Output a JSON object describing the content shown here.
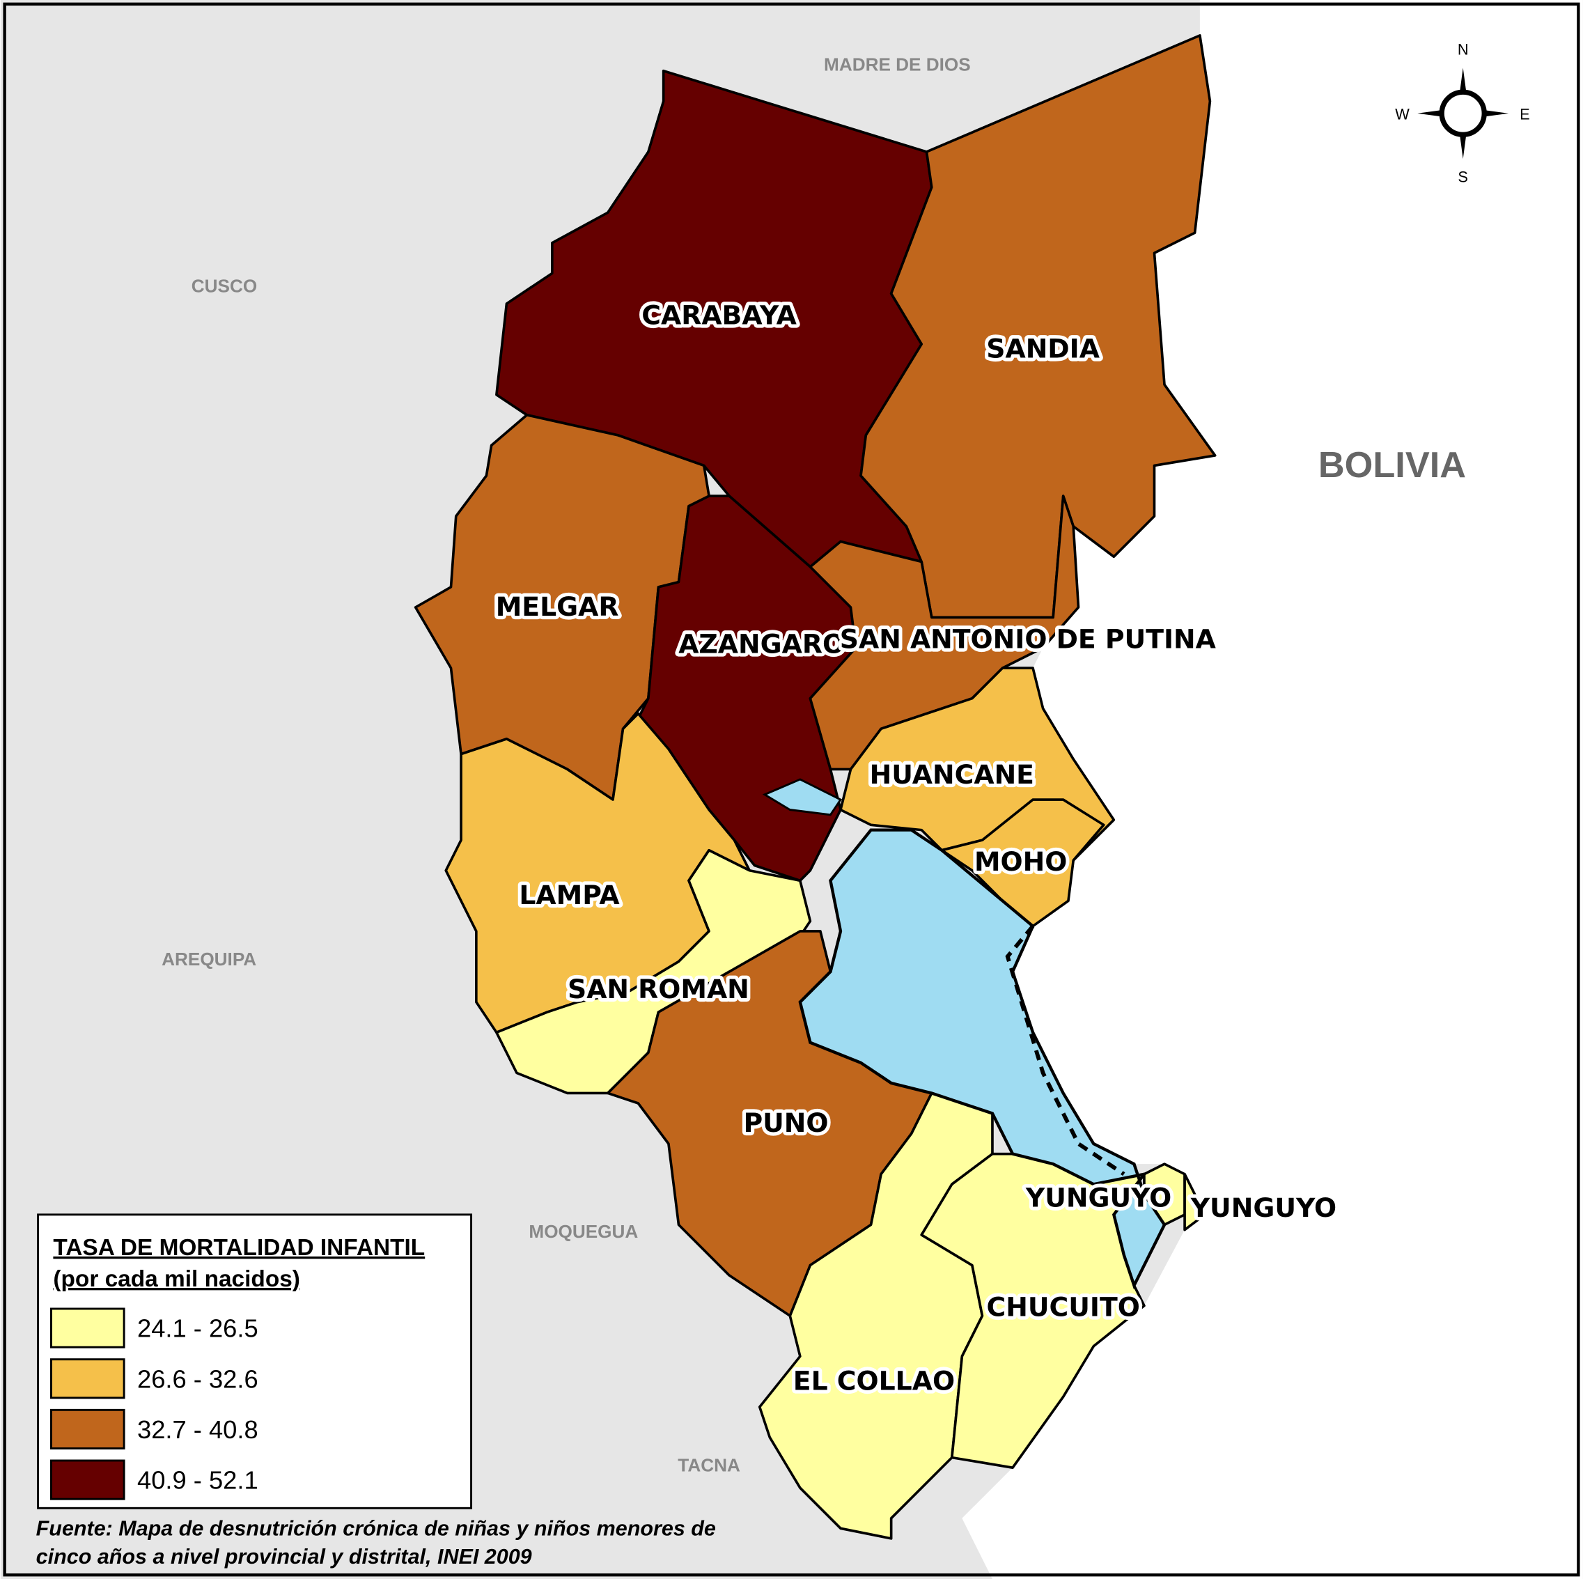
{
  "legend": {
    "title": "TASA DE MORTALIDAD INFANTIL",
    "subtitle": "(por cada mil nacidos)",
    "classes": [
      {
        "label": "24.1 - 26.5",
        "color": "#ffffa0"
      },
      {
        "label": "26.6 - 32.6",
        "color": "#f5c04a"
      },
      {
        "label": "32.7 - 40.8",
        "color": "#c0661c"
      },
      {
        "label": "40.9 - 52.1",
        "color": "#650000"
      }
    ]
  },
  "provinces": [
    {
      "name": "CARABAYA",
      "color": "#650000"
    },
    {
      "name": "SANDIA",
      "color": "#c0661c"
    },
    {
      "name": "MELGAR",
      "color": "#c0661c"
    },
    {
      "name": "AZANGARO",
      "color": "#650000"
    },
    {
      "name": "SAN ANTONIO DE PUTINA",
      "color": "#c0661c"
    },
    {
      "name": "HUANCANE",
      "color": "#f5c04a"
    },
    {
      "name": "MOHO",
      "color": "#f5c04a"
    },
    {
      "name": "LAMPA",
      "color": "#f5c04a"
    },
    {
      "name": "SAN ROMAN",
      "color": "#ffffa0"
    },
    {
      "name": "PUNO",
      "color": "#c0661c"
    },
    {
      "name": "EL COLLAO",
      "color": "#ffffa0"
    },
    {
      "name": "CHUCUITO",
      "color": "#ffffa0"
    },
    {
      "name": "YUNGUYO",
      "color": "#ffffa0"
    },
    {
      "name": "YUNGUYO",
      "color": "#ffffa0"
    }
  ],
  "regions": [
    "MADRE DE DIOS",
    "CUSCO",
    "AREQUIPA",
    "MOQUEGUA",
    "TACNA"
  ],
  "country": "BOLIVIA",
  "compass": {
    "n": "N",
    "s": "S",
    "e": "E",
    "w": "W"
  },
  "source": [
    "Fuente: Mapa de desnutrición crónica de niñas y niños menores de",
    "cinco años a nivel provincial y distrital, INEI 2009"
  ]
}
